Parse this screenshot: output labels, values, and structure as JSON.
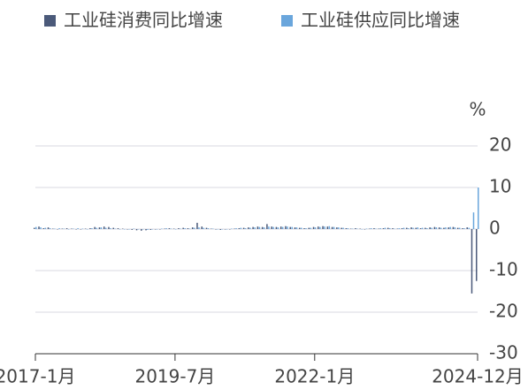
{
  "chart_data": {
    "type": "bar",
    "unit": "%",
    "categories": [
      "2017-1月",
      null,
      null,
      null,
      null,
      null,
      null,
      null,
      null,
      null,
      null,
      null,
      null,
      null,
      null,
      null,
      null,
      null,
      null,
      null,
      null,
      null,
      null,
      null,
      null,
      null,
      null,
      null,
      null,
      null,
      "2019-7月",
      null,
      null,
      null,
      null,
      null,
      null,
      null,
      null,
      null,
      null,
      null,
      null,
      null,
      null,
      null,
      null,
      null,
      null,
      null,
      null,
      null,
      null,
      null,
      null,
      null,
      null,
      null,
      null,
      null,
      "2022-1月",
      null,
      null,
      null,
      null,
      null,
      null,
      null,
      null,
      null,
      null,
      null,
      null,
      null,
      null,
      null,
      null,
      null,
      null,
      null,
      null,
      null,
      null,
      null,
      null,
      null,
      null,
      null,
      null,
      null,
      null,
      null,
      null,
      null,
      null,
      "2024-12月"
    ],
    "series": [
      {
        "name": "工业硅消费同比增速",
        "color": "#4b5a7a",
        "values": [
          0.3,
          0.6,
          0.2,
          0.4,
          0.1,
          0.0,
          0.1,
          0.2,
          0.1,
          0.0,
          -0.1,
          0.1,
          0.2,
          0.5,
          0.4,
          0.6,
          0.5,
          0.3,
          0.2,
          0.1,
          0.0,
          -0.2,
          -0.3,
          -0.4,
          -0.3,
          -0.2,
          -0.1,
          0.0,
          0.1,
          0.2,
          0.1,
          0.2,
          0.3,
          0.2,
          0.4,
          1.5,
          0.6,
          0.3,
          0.1,
          -0.1,
          -0.2,
          -0.1,
          0.0,
          0.1,
          0.2,
          0.3,
          0.4,
          0.5,
          0.6,
          0.5,
          1.2,
          0.6,
          0.5,
          0.6,
          0.7,
          0.5,
          0.4,
          0.3,
          0.2,
          0.3,
          0.5,
          0.6,
          0.7,
          0.6,
          0.5,
          0.4,
          0.3,
          0.2,
          0.1,
          0.2,
          0.1,
          0.0,
          0.1,
          0.2,
          0.1,
          0.2,
          0.3,
          0.2,
          0.1,
          0.2,
          0.3,
          0.4,
          0.3,
          0.2,
          0.3,
          0.4,
          0.5,
          0.4,
          0.3,
          0.4,
          0.5,
          0.3,
          0.2,
          0.4,
          -15.5,
          -12.5
        ]
      },
      {
        "name": "工业硅供应同比增速",
        "color": "#6aa6dc",
        "values": [
          0.5,
          0.4,
          0.3,
          0.2,
          0.1,
          0.2,
          0.1,
          0.0,
          0.1,
          0.2,
          0.1,
          0.0,
          0.2,
          0.3,
          0.4,
          0.3,
          0.2,
          0.1,
          0.0,
          -0.1,
          0.0,
          0.1,
          0.0,
          -0.1,
          -0.2,
          -0.1,
          0.0,
          0.1,
          0.2,
          0.1,
          0.0,
          0.1,
          0.2,
          0.1,
          0.3,
          0.4,
          0.3,
          0.2,
          0.1,
          0.0,
          -0.1,
          0.0,
          0.1,
          0.2,
          0.3,
          0.2,
          0.3,
          0.4,
          0.5,
          0.4,
          0.6,
          0.5,
          0.4,
          0.5,
          0.6,
          0.5,
          0.4,
          0.3,
          0.2,
          0.3,
          0.4,
          0.5,
          0.6,
          0.7,
          0.5,
          0.4,
          0.3,
          0.2,
          0.1,
          0.1,
          0.0,
          0.1,
          0.2,
          0.1,
          0.2,
          0.3,
          0.2,
          0.1,
          0.2,
          0.3,
          0.2,
          0.3,
          0.4,
          0.3,
          0.2,
          0.3,
          0.4,
          0.3,
          0.4,
          0.5,
          0.4,
          0.3,
          0.2,
          0.3,
          4,
          10
        ]
      }
    ],
    "ylim": [
      -30,
      20
    ],
    "yticks": [
      -30,
      -20,
      -10,
      0,
      10,
      20
    ],
    "grid": true
  }
}
